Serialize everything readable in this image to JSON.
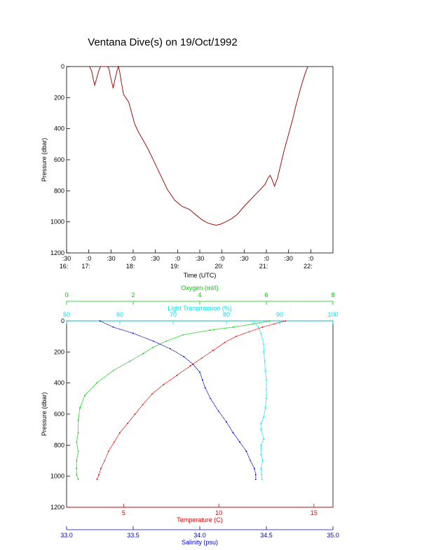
{
  "title": "Ventana Dive(s) on 19/Oct/1992",
  "colors": {
    "axis": "#000000",
    "trace": "#a01010",
    "oxygen": "#00cc00",
    "transmission": "#00e5ee",
    "temperature": "#dd0000",
    "salinity": "#0000cc"
  },
  "chart_data": [
    {
      "type": "line",
      "xlabel": "Time (UTC)",
      "ylabel": "Pressure (dbar)",
      "ylim": [
        1200,
        0
      ],
      "yticks": [
        0,
        200,
        400,
        600,
        800,
        1000,
        1200
      ],
      "yticks_labels": [
        "0",
        "200",
        "400",
        "600",
        "800",
        "1000",
        "1200"
      ],
      "xlim_minutes": [
        990,
        1350
      ],
      "xticks": [
        {
          "min": 990,
          "top": ":30",
          "bottom": "16:"
        },
        {
          "min": 1020,
          "top": ":0",
          "bottom": "17:"
        },
        {
          "min": 1050,
          "top": ":30",
          "bottom": ""
        },
        {
          "min": 1080,
          "top": ":0",
          "bottom": "18:"
        },
        {
          "min": 1110,
          "top": ":30",
          "bottom": ""
        },
        {
          "min": 1140,
          "top": ":0",
          "bottom": "19:"
        },
        {
          "min": 1170,
          "top": ":30",
          "bottom": ""
        },
        {
          "min": 1200,
          "top": ":0",
          "bottom": "20:"
        },
        {
          "min": 1230,
          "top": ":30",
          "bottom": ""
        },
        {
          "min": 1260,
          "top": ":0",
          "bottom": "21:"
        },
        {
          "min": 1290,
          "top": ":30",
          "bottom": ""
        },
        {
          "min": 1320,
          "top": ":0",
          "bottom": "22:"
        }
      ],
      "series": [
        {
          "name": "",
          "x_minutes": [
            1021,
            1024,
            1026,
            1028,
            1031,
            1034,
            1036,
            1039,
            1042,
            1045,
            1047,
            1050,
            1053,
            1055,
            1058,
            1060,
            1062,
            1064,
            1067,
            1070,
            1074,
            1078,
            1082,
            1087,
            1093,
            1100,
            1108,
            1117,
            1126,
            1136,
            1146,
            1156,
            1166,
            1174,
            1180,
            1186,
            1192,
            1198,
            1205,
            1213,
            1221,
            1230,
            1238,
            1246,
            1252,
            1258,
            1262,
            1265,
            1268,
            1271,
            1275,
            1280,
            1284,
            1288,
            1292,
            1296,
            1300,
            1304,
            1308,
            1312,
            1316
          ],
          "y": [
            0,
            30,
            80,
            120,
            70,
            20,
            0,
            0,
            0,
            0,
            10,
            80,
            140,
            90,
            30,
            0,
            40,
            100,
            180,
            200,
            230,
            300,
            370,
            420,
            470,
            530,
            610,
            700,
            790,
            860,
            900,
            920,
            960,
            990,
            1005,
            1015,
            1022,
            1015,
            1000,
            980,
            950,
            900,
            860,
            820,
            790,
            760,
            720,
            700,
            730,
            770,
            720,
            620,
            540,
            470,
            400,
            330,
            250,
            180,
            110,
            50,
            0
          ]
        }
      ]
    },
    {
      "type": "scatter",
      "ylabel": "Pressure (dbar)",
      "ylim": [
        1200,
        0
      ],
      "yticks": [
        0,
        200,
        400,
        600,
        800,
        1000,
        1200
      ],
      "yticks_labels": [
        "0",
        "200",
        "400",
        "600",
        "800",
        "1000",
        "1200"
      ],
      "axes": {
        "oxygen": {
          "label": "Oxygen (ml/l)",
          "lim": [
            0,
            8
          ],
          "ticks": [
            0,
            2,
            4,
            6,
            8
          ],
          "ticks_labels": [
            "0",
            "2",
            "4",
            "6",
            "8"
          ]
        },
        "transmission": {
          "label": "Light Transmission (%)",
          "lim": [
            50,
            100
          ],
          "ticks": [
            50,
            60,
            70,
            80,
            90,
            100
          ],
          "ticks_labels": [
            "50",
            "60",
            "70",
            "80",
            "90",
            "100"
          ]
        },
        "temperature": {
          "label": "Temperature (C)",
          "lim": [
            2,
            16
          ],
          "ticks": [
            5,
            10,
            15
          ],
          "ticks_labels": [
            "5",
            "10",
            "15"
          ]
        },
        "salinity": {
          "label": "Salinity (psu)",
          "lim": [
            33.0,
            35.0
          ],
          "ticks": [
            33.0,
            33.5,
            34.0,
            34.5,
            35.0
          ],
          "ticks_labels": [
            "33.0",
            "33.5",
            "34.0",
            "34.5",
            "35.0"
          ]
        }
      },
      "series": [
        {
          "name": "Oxygen (ml/l)",
          "axis": "oxygen",
          "values": [
            6.1,
            5.6,
            5.0,
            4.3,
            3.5,
            3.0,
            2.6,
            2.3,
            1.9,
            1.4,
            0.9,
            0.55,
            0.4,
            0.35,
            0.35,
            0.3,
            0.35,
            0.3,
            0.3,
            0.3,
            0.35
          ],
          "pressure": [
            0,
            20,
            40,
            60,
            90,
            130,
            170,
            210,
            260,
            320,
            400,
            480,
            560,
            640,
            720,
            780,
            840,
            900,
            950,
            990,
            1020
          ]
        },
        {
          "name": "Light Transmission (%)",
          "axis": "transmission",
          "values": [
            85,
            86,
            86.5,
            87,
            87,
            87.2,
            87.3,
            87.5,
            87.5,
            87.5,
            87.3,
            87.0,
            86.5,
            86.5,
            87.0,
            86.5,
            86.5,
            86.8,
            86.5,
            86.6,
            86.7
          ],
          "pressure": [
            0,
            40,
            80,
            150,
            200,
            260,
            320,
            380,
            440,
            500,
            560,
            620,
            660,
            700,
            760,
            800,
            860,
            900,
            950,
            990,
            1020
          ]
        },
        {
          "name": "Temperature (C)",
          "axis": "temperature",
          "values": [
            13.5,
            12.9,
            12.3,
            11.6,
            10.9,
            10.3,
            9.7,
            9.1,
            8.5,
            7.8,
            7.1,
            6.5,
            6.0,
            5.6,
            5.2,
            4.8,
            4.5,
            4.2,
            4.0,
            3.8,
            3.7,
            3.6
          ],
          "pressure": [
            0,
            20,
            40,
            70,
            100,
            140,
            190,
            240,
            290,
            350,
            410,
            470,
            540,
            600,
            660,
            720,
            780,
            840,
            900,
            950,
            990,
            1020
          ]
        },
        {
          "name": "Salinity (psu)",
          "axis": "salinity",
          "values": [
            33.25,
            33.35,
            33.5,
            33.65,
            33.78,
            33.88,
            33.95,
            34.0,
            34.02,
            34.04,
            34.08,
            34.14,
            34.2,
            34.25,
            34.3,
            34.35,
            34.38,
            34.41,
            34.42,
            34.42
          ],
          "pressure": [
            0,
            40,
            80,
            130,
            180,
            230,
            280,
            330,
            380,
            430,
            500,
            580,
            650,
            720,
            780,
            840,
            900,
            950,
            990,
            1020
          ]
        }
      ]
    }
  ]
}
